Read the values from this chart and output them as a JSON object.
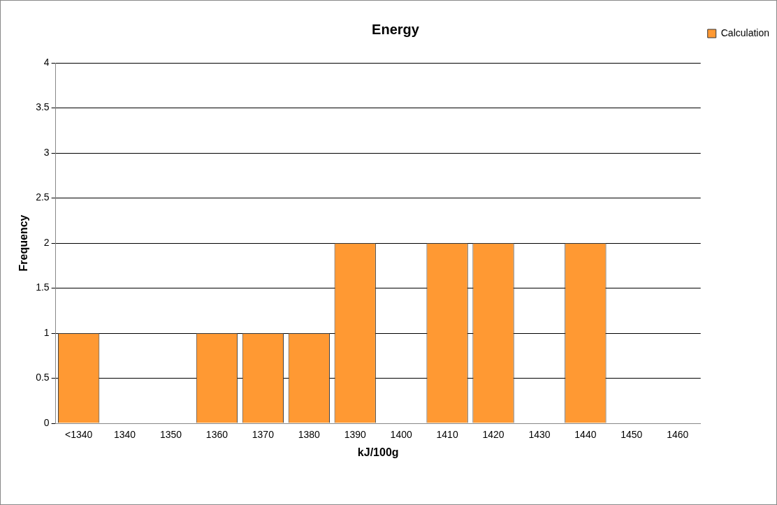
{
  "chart_data": {
    "type": "bar",
    "title": "Energy",
    "xlabel": "kJ/100g",
    "ylabel": "Frequency",
    "categories": [
      "<1340",
      "1340",
      "1350",
      "1360",
      "1370",
      "1380",
      "1390",
      "1400",
      "1410",
      "1420",
      "1430",
      "1440",
      "1450",
      "1460"
    ],
    "series": [
      {
        "name": "Calculation",
        "color": "#ff9933",
        "values": [
          1,
          0,
          0,
          1,
          1,
          1,
          2,
          0,
          2,
          2,
          0,
          2,
          0,
          null
        ]
      }
    ],
    "ylim": [
      0,
      4
    ],
    "yticks": [
      0,
      0.5,
      1,
      1.5,
      2,
      2.5,
      3,
      3.5,
      4
    ],
    "grid": "y",
    "legend": "top right"
  }
}
